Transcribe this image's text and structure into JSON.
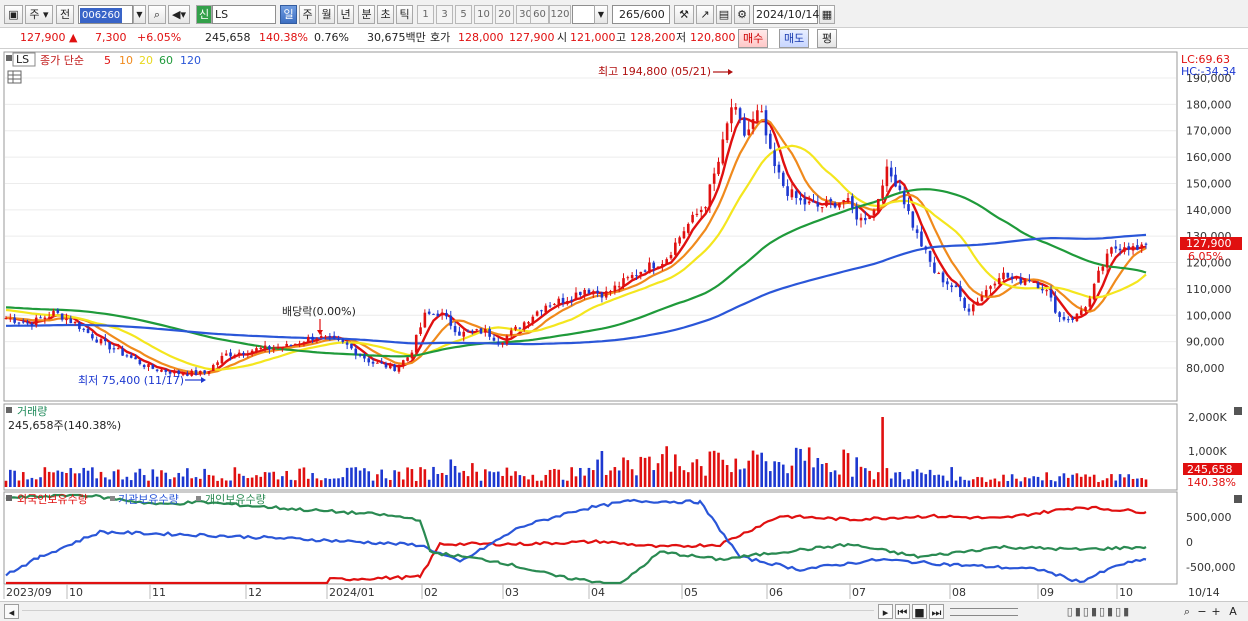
{
  "toolbar": {
    "market_label": "주",
    "prev_label": "전",
    "stock_code": "006260",
    "stock_name": "LS",
    "credit_tag": "신",
    "periods": [
      "일",
      "주",
      "월",
      "년",
      "분",
      "초",
      "틱"
    ],
    "active_period": "일",
    "intervals": [
      "1",
      "3",
      "5",
      "10",
      "20",
      "30",
      "60",
      "120"
    ],
    "count": "265",
    "count_max": "/600",
    "date": "2024/10/14"
  },
  "quote": {
    "price": "127,900 ▲",
    "change": "7,300",
    "change_pct": "+6.05%",
    "volume": "245,658",
    "volume_ratio": "140.38%",
    "turnover": "0.76%",
    "value": "30,675백만",
    "ask_label": "호가",
    "ask": "128,000",
    "bid": "127,900",
    "open_label": "시",
    "open": "121,000",
    "high_label": "고",
    "high": "128,200",
    "low_label": "저",
    "low": "120,800",
    "buy_label": "매수",
    "sell_label": "매도",
    "avg_label": "평"
  },
  "price_pane": {
    "legend_name": "LS",
    "legend_title": "종가 단순",
    "ma_periods": [
      "5",
      "10",
      "20",
      "60",
      "120"
    ],
    "ma_colors": [
      "#e01010",
      "#f08a1c",
      "#f4e61e",
      "#1f9a3a",
      "#2a56d8"
    ],
    "lc": "LC:69.63",
    "hc": "HC:-34.34",
    "y_ticks": [
      "190,000",
      "180,000",
      "170,000",
      "160,000",
      "150,000",
      "140,000",
      "130,000",
      "120,000",
      "110,000",
      "100,000",
      "90,000",
      "80,000"
    ],
    "current_price_label": "127,900",
    "current_pct_label": "6.05%",
    "high_annotation": "최고 194,800 (05/21)",
    "low_annotation": "최저 75,400 (11/17)",
    "dividend_annotation": "배당락(0.00%)"
  },
  "volume_pane": {
    "title": "거래량",
    "value_text": "245,658주(140.38%)",
    "y_ticks": [
      "2,000K",
      "1,000K"
    ],
    "current_label": "245,658",
    "current_pct": "140.38%"
  },
  "holdings_pane": {
    "legend": [
      "외국인보유수량",
      "기관보유수량",
      "개인보유수량"
    ],
    "colors": [
      "#e01010",
      "#2a56d8",
      "#2a8a52"
    ],
    "y_ticks": [
      "500,000",
      "0",
      "-500,000"
    ]
  },
  "x_axis": {
    "labels": [
      "2023/09",
      "10",
      "11",
      "12",
      "2024/01",
      "02",
      "03",
      "04",
      "05",
      "06",
      "07",
      "08",
      "09",
      "10"
    ],
    "right_label": "10/14"
  },
  "bottom_bar": {
    "icons": [
      "play-icon",
      "rewind-icon",
      "stop-icon",
      "forward-icon",
      "zoom-out-icon",
      "zoom-in-icon"
    ],
    "plus": "+",
    "minus": "−",
    "font_label": "A"
  }
}
